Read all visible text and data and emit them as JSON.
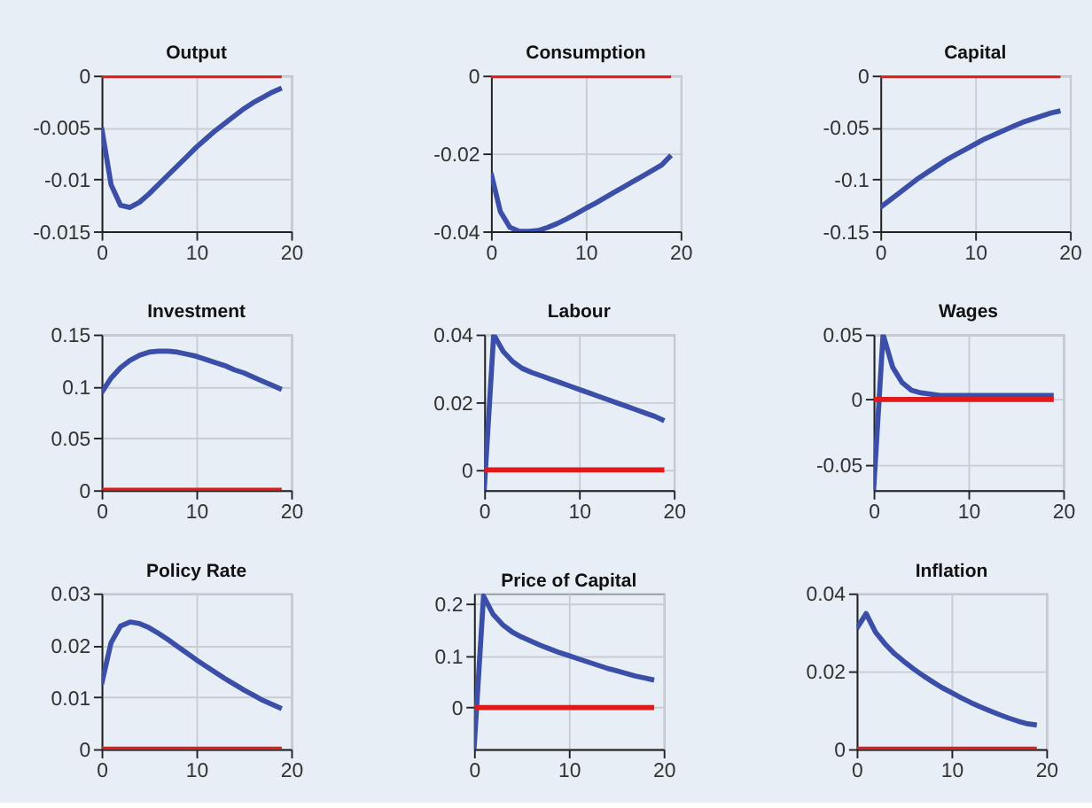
{
  "chart_data": [
    {
      "type": "line",
      "title": "Output",
      "x": [
        0,
        1,
        2,
        3,
        4,
        5,
        6,
        7,
        8,
        9,
        10,
        11,
        12,
        13,
        14,
        15,
        16,
        17,
        18,
        19
      ],
      "xlim": [
        0,
        20
      ],
      "xticks": [
        0,
        10,
        20
      ],
      "ylim": [
        -0.015,
        0
      ],
      "yticks": [
        -0.015,
        -0.01,
        -0.005,
        0
      ],
      "grid": true,
      "series": [
        {
          "color": "#3b4fa8",
          "values": [
            -0.005,
            -0.0105,
            -0.0125,
            -0.0127,
            -0.0122,
            -0.0114,
            -0.0105,
            -0.0096,
            -0.0087,
            -0.0078,
            -0.0069,
            -0.0061,
            -0.0053,
            -0.0046,
            -0.0039,
            -0.0032,
            -0.0026,
            -0.0021,
            -0.0016,
            -0.0012
          ]
        },
        {
          "color": "#e01a1a",
          "values": [
            0,
            0,
            0,
            0,
            0,
            0,
            0,
            0,
            0,
            0,
            0,
            0,
            0,
            0,
            0,
            0,
            0,
            0,
            0,
            0
          ]
        }
      ]
    },
    {
      "type": "line",
      "title": "Consumption",
      "x": [
        0,
        1,
        2,
        3,
        4,
        5,
        6,
        7,
        8,
        9,
        10,
        11,
        12,
        13,
        14,
        15,
        16,
        17,
        18,
        19
      ],
      "xlim": [
        0,
        20
      ],
      "xticks": [
        0,
        10,
        20
      ],
      "ylim": [
        -0.04,
        0
      ],
      "yticks": [
        -0.04,
        -0.02,
        0
      ],
      "grid": true,
      "series": [
        {
          "color": "#3b4fa8",
          "values": [
            -0.025,
            -0.035,
            -0.039,
            -0.04,
            -0.04,
            -0.0398,
            -0.039,
            -0.038,
            -0.0368,
            -0.0355,
            -0.0341,
            -0.0328,
            -0.0314,
            -0.03,
            -0.0286,
            -0.0272,
            -0.0258,
            -0.0244,
            -0.023,
            -0.0205
          ]
        },
        {
          "color": "#e01a1a",
          "values": [
            0,
            0,
            0,
            0,
            0,
            0,
            0,
            0,
            0,
            0,
            0,
            0,
            0,
            0,
            0,
            0,
            0,
            0,
            0,
            0
          ]
        }
      ]
    },
    {
      "type": "line",
      "title": "Capital",
      "x": [
        0,
        1,
        2,
        3,
        4,
        5,
        6,
        7,
        8,
        9,
        10,
        11,
        12,
        13,
        14,
        15,
        16,
        17,
        18,
        19
      ],
      "xlim": [
        0,
        20
      ],
      "xticks": [
        0,
        10,
        20
      ],
      "ylim": [
        -0.15,
        0
      ],
      "yticks": [
        -0.15,
        -0.1,
        -0.05,
        0
      ],
      "grid": true,
      "series": [
        {
          "color": "#3b4fa8",
          "values": [
            -0.127,
            -0.12,
            -0.113,
            -0.106,
            -0.099,
            -0.093,
            -0.087,
            -0.081,
            -0.076,
            -0.071,
            -0.066,
            -0.061,
            -0.057,
            -0.053,
            -0.049,
            -0.045,
            -0.042,
            -0.039,
            -0.036,
            -0.034
          ]
        },
        {
          "color": "#e01a1a",
          "values": [
            0,
            0,
            0,
            0,
            0,
            0,
            0,
            0,
            0,
            0,
            0,
            0,
            0,
            0,
            0,
            0,
            0,
            0,
            0,
            0
          ]
        }
      ]
    },
    {
      "type": "line",
      "title": "Investment",
      "x": [
        0,
        1,
        2,
        3,
        4,
        5,
        6,
        7,
        8,
        9,
        10,
        11,
        12,
        13,
        14,
        15,
        16,
        17,
        18,
        19
      ],
      "xlim": [
        0,
        20
      ],
      "xticks": [
        0,
        10,
        20
      ],
      "ylim": [
        0,
        0.15
      ],
      "yticks": [
        0,
        0.05,
        0.1,
        0.15
      ],
      "grid": true,
      "series": [
        {
          "color": "#3b4fa8",
          "values": [
            0.094,
            0.108,
            0.118,
            0.125,
            0.13,
            0.133,
            0.134,
            0.134,
            0.133,
            0.131,
            0.129,
            0.126,
            0.123,
            0.12,
            0.116,
            0.113,
            0.109,
            0.105,
            0.101,
            0.097
          ]
        },
        {
          "color": "#e01a1a",
          "values": [
            0,
            0,
            0,
            0,
            0,
            0,
            0,
            0,
            0,
            0,
            0,
            0,
            0,
            0,
            0,
            0,
            0,
            0,
            0,
            0
          ]
        }
      ]
    },
    {
      "type": "line",
      "title": "Labour",
      "x": [
        0,
        1,
        2,
        3,
        4,
        5,
        6,
        7,
        8,
        9,
        10,
        11,
        12,
        13,
        14,
        15,
        16,
        17,
        18,
        19
      ],
      "xlim": [
        0,
        20
      ],
      "xticks": [
        0,
        10,
        20
      ],
      "ylim": [
        -0.006,
        0.04
      ],
      "yticks": [
        0,
        0.02,
        0.04
      ],
      "grid": true,
      "series": [
        {
          "color": "#3b4fa8",
          "values": [
            -0.006,
            0.04,
            0.035,
            0.032,
            0.03,
            0.0288,
            0.0278,
            0.0268,
            0.0258,
            0.0248,
            0.0238,
            0.0228,
            0.0218,
            0.0208,
            0.0198,
            0.0188,
            0.0178,
            0.0168,
            0.0158,
            0.0145
          ]
        },
        {
          "color": "#e01a1a",
          "values": [
            0,
            0,
            0,
            0,
            0,
            0,
            0,
            0,
            0,
            0,
            0,
            0,
            0,
            0,
            0,
            0,
            0,
            0,
            0,
            0
          ]
        }
      ]
    },
    {
      "type": "line",
      "title": "Wages",
      "x": [
        0,
        1,
        2,
        3,
        4,
        5,
        6,
        7,
        8,
        9,
        10,
        11,
        12,
        13,
        14,
        15,
        16,
        17,
        18,
        19
      ],
      "xlim": [
        0,
        20
      ],
      "xticks": [
        0,
        10,
        20
      ],
      "ylim": [
        -0.07,
        0.05
      ],
      "yticks": [
        -0.05,
        0,
        0.05
      ],
      "grid": true,
      "series": [
        {
          "color": "#3b4fa8",
          "values": [
            -0.07,
            0.05,
            0.025,
            0.013,
            0.007,
            0.005,
            0.004,
            0.003,
            0.003,
            0.003,
            0.003,
            0.003,
            0.003,
            0.003,
            0.003,
            0.003,
            0.003,
            0.003,
            0.003,
            0.003
          ]
        },
        {
          "color": "#e01a1a",
          "values": [
            0,
            0,
            0,
            0,
            0,
            0,
            0,
            0,
            0,
            0,
            0,
            0,
            0,
            0,
            0,
            0,
            0,
            0,
            0,
            0
          ]
        }
      ]
    },
    {
      "type": "line",
      "title": "Policy Rate",
      "x": [
        0,
        1,
        2,
        3,
        4,
        5,
        6,
        7,
        8,
        9,
        10,
        11,
        12,
        13,
        14,
        15,
        16,
        17,
        18,
        19
      ],
      "xlim": [
        0,
        20
      ],
      "xticks": [
        0,
        10,
        20
      ],
      "ylim": [
        0,
        0.03
      ],
      "yticks": [
        0,
        0.01,
        0.02,
        0.03
      ],
      "grid": true,
      "series": [
        {
          "color": "#3b4fa8",
          "values": [
            0.0125,
            0.0205,
            0.0237,
            0.0245,
            0.0242,
            0.0234,
            0.0223,
            0.0211,
            0.0198,
            0.0185,
            0.0172,
            0.016,
            0.0148,
            0.0136,
            0.0125,
            0.0114,
            0.0104,
            0.0094,
            0.0086,
            0.0078
          ]
        },
        {
          "color": "#e01a1a",
          "values": [
            0,
            0,
            0,
            0,
            0,
            0,
            0,
            0,
            0,
            0,
            0,
            0,
            0,
            0,
            0,
            0,
            0,
            0,
            0,
            0
          ]
        }
      ]
    },
    {
      "type": "line",
      "title": "Price of Capital",
      "x": [
        0,
        1,
        2,
        3,
        4,
        5,
        6,
        7,
        8,
        9,
        10,
        11,
        12,
        13,
        14,
        15,
        16,
        17,
        18,
        19
      ],
      "xlim": [
        0,
        20
      ],
      "xticks": [
        0,
        10,
        20
      ],
      "ylim": [
        -0.08,
        0.22
      ],
      "yticks": [
        0,
        0.1,
        0.2
      ],
      "grid": true,
      "series": [
        {
          "color": "#3b4fa8",
          "values": [
            -0.08,
            0.215,
            0.18,
            0.16,
            0.146,
            0.136,
            0.128,
            0.12,
            0.113,
            0.106,
            0.1,
            0.094,
            0.088,
            0.082,
            0.076,
            0.071,
            0.066,
            0.061,
            0.057,
            0.053
          ]
        },
        {
          "color": "#e01a1a",
          "values": [
            0,
            0,
            0,
            0,
            0,
            0,
            0,
            0,
            0,
            0,
            0,
            0,
            0,
            0,
            0,
            0,
            0,
            0,
            0,
            0
          ]
        }
      ]
    },
    {
      "type": "line",
      "title": "Inflation",
      "x": [
        0,
        1,
        2,
        3,
        4,
        5,
        6,
        7,
        8,
        9,
        10,
        11,
        12,
        13,
        14,
        15,
        16,
        17,
        18,
        19
      ],
      "xlim": [
        0,
        20
      ],
      "xticks": [
        0,
        10,
        20
      ],
      "ylim": [
        0,
        0.04
      ],
      "yticks": [
        0,
        0.02,
        0.04
      ],
      "grid": true,
      "series": [
        {
          "color": "#3b4fa8",
          "values": [
            0.031,
            0.0348,
            0.03,
            0.027,
            0.0245,
            0.0225,
            0.0206,
            0.0189,
            0.0173,
            0.0158,
            0.0145,
            0.0132,
            0.012,
            0.0109,
            0.0099,
            0.0089,
            0.008,
            0.0072,
            0.0065,
            0.0062
          ]
        },
        {
          "color": "#e01a1a",
          "values": [
            0,
            0,
            0,
            0,
            0,
            0,
            0,
            0,
            0,
            0,
            0,
            0,
            0,
            0,
            0,
            0,
            0,
            0,
            0,
            0
          ]
        }
      ]
    }
  ]
}
